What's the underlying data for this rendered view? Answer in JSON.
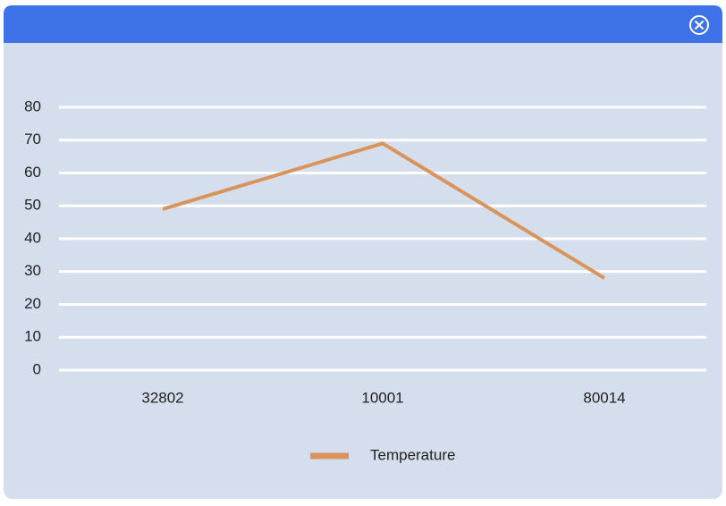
{
  "chart_data": {
    "type": "line",
    "categories": [
      "32802",
      "10001",
      "80014"
    ],
    "series": [
      {
        "name": "Temperature",
        "color": "#d9945c",
        "values": [
          49,
          69,
          28
        ]
      }
    ],
    "ylim": [
      0,
      80
    ],
    "yticks": [
      0,
      10,
      20,
      30,
      40,
      50,
      60,
      70,
      80
    ],
    "grid": true,
    "legend": "bottom"
  }
}
